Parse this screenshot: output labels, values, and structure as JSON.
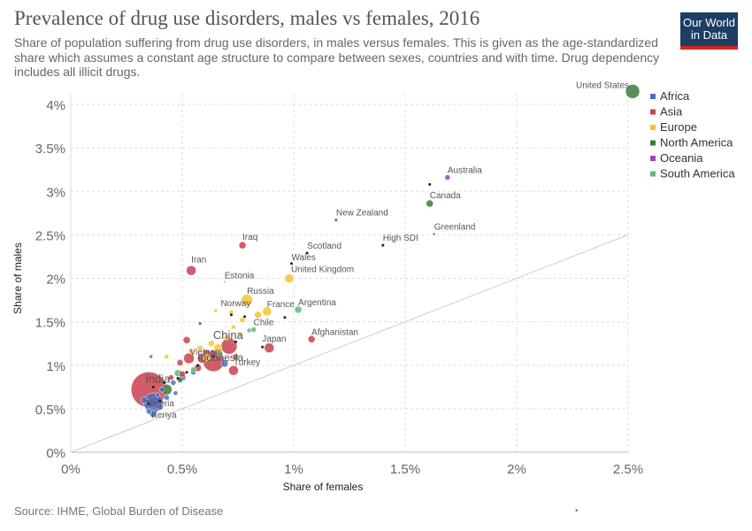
{
  "header": {
    "title": "Prevalence of drug use disorders, males vs females, 2016",
    "subtitle": "Share of population suffering from drug use disorders, in males versus females. This is given as the age-standardized share which assumes a constant age structure to compare between sexes, countries and with time. Drug dependency includes all illicit drugs.",
    "logo_line1": "Our World",
    "logo_line2": "in Data"
  },
  "footer": {
    "source": "Source: IHME, Global Burden of Disease",
    "marker": "•"
  },
  "colors": {
    "Africa": "#4c6fbf",
    "Asia": "#c9414e",
    "Europe": "#f4c430",
    "North America": "#3a7d3b",
    "Oceania": "#a83fbf",
    "South America": "#5cbd74",
    "aggregate": "#222222",
    "grid": "#dddddd",
    "diagonal": "#cccccc"
  },
  "chart_data": {
    "type": "scatter",
    "xlabel": "Share of females",
    "ylabel": "Share of males",
    "xlim": [
      0,
      2.5
    ],
    "ylim": [
      0,
      4
    ],
    "xticks": [
      0,
      0.5,
      1,
      1.5,
      2,
      2.5
    ],
    "xtick_labels": [
      "0%",
      "0.5%",
      "1%",
      "1.5%",
      "2%",
      "2.5%"
    ],
    "yticks": [
      0,
      0.5,
      1,
      1.5,
      2,
      2.5,
      3,
      3.5,
      4
    ],
    "ytick_labels": [
      "0%",
      "0.5%",
      "1%",
      "1.5%",
      "2%",
      "2.5%",
      "3%",
      "3.5%",
      "4%"
    ],
    "grid": true,
    "reference_line": "y = x",
    "legend_position": "right",
    "legend": [
      "Africa",
      "Asia",
      "Europe",
      "North America",
      "Oceania",
      "South America"
    ],
    "labeled_points": [
      {
        "label": "United States",
        "region": "North America",
        "x": 2.52,
        "y": 4.15,
        "size": 8
      },
      {
        "label": "Australia",
        "region": "Oceania",
        "x": 1.69,
        "y": 3.16,
        "size": 3
      },
      {
        "label": "Canada",
        "region": "North America",
        "x": 1.61,
        "y": 2.86,
        "size": 4
      },
      {
        "label": "Greenland",
        "region": "North America",
        "x": 1.63,
        "y": 2.51,
        "size": 1.5
      },
      {
        "label": "New Zealand",
        "region": "Oceania",
        "x": 1.19,
        "y": 2.67,
        "size": 2
      },
      {
        "label": "High SDI",
        "region": "aggregate",
        "x": 1.4,
        "y": 2.38,
        "size": 1.5
      },
      {
        "label": "Iraq",
        "region": "Asia",
        "x": 0.77,
        "y": 2.38,
        "size": 4
      },
      {
        "label": "Scotland",
        "region": "aggregate",
        "x": 1.06,
        "y": 2.29,
        "size": 1.5
      },
      {
        "label": "Wales",
        "region": "aggregate",
        "x": 0.99,
        "y": 2.17,
        "size": 1.5
      },
      {
        "label": "Iran",
        "region": "Asia",
        "x": 0.54,
        "y": 2.09,
        "size": 5.5
      },
      {
        "label": "United Kingdom",
        "region": "Europe",
        "x": 0.98,
        "y": 2.0,
        "size": 5
      },
      {
        "label": "Estonia",
        "region": "Europe",
        "x": 0.69,
        "y": 1.96,
        "size": 1.5
      },
      {
        "label": "Russia",
        "region": "Europe",
        "x": 0.79,
        "y": 1.75,
        "size": 6.5
      },
      {
        "label": "Argentina",
        "region": "South America",
        "x": 1.02,
        "y": 1.64,
        "size": 4
      },
      {
        "label": "Norway",
        "region": "Europe",
        "x": 0.72,
        "y": 1.61,
        "size": 2.5
      },
      {
        "label": "France",
        "region": "Europe",
        "x": 0.88,
        "y": 1.62,
        "size": 5
      },
      {
        "label": "Chile",
        "region": "South America",
        "x": 0.82,
        "y": 1.41,
        "size": 3
      },
      {
        "label": "Afghanistan",
        "region": "Asia",
        "x": 1.08,
        "y": 1.3,
        "size": 4
      },
      {
        "label": "China",
        "region": "Asia",
        "x": 0.71,
        "y": 1.22,
        "size": 9
      },
      {
        "label": "Japan",
        "region": "Asia",
        "x": 0.89,
        "y": 1.2,
        "size": 5.5
      },
      {
        "label": "Vietnam",
        "region": "Asia",
        "x": 0.59,
        "y": 1.08,
        "size": 5.5
      },
      {
        "label": "Indonesia",
        "region": "Asia",
        "x": 0.64,
        "y": 1.05,
        "size": 12
      },
      {
        "label": "Turkey",
        "region": "Asia",
        "x": 0.73,
        "y": 0.94,
        "size": 5.5
      },
      {
        "label": "India",
        "region": "Asia",
        "x": 0.35,
        "y": 0.72,
        "size": 20
      },
      {
        "label": "Nigeria",
        "region": "Africa",
        "x": 0.37,
        "y": 0.57,
        "size": 11
      },
      {
        "label": "Kenya",
        "region": "Africa",
        "x": 0.37,
        "y": 0.44,
        "size": 4
      }
    ],
    "other_points": [
      {
        "region": "Africa",
        "x": 0.35,
        "y": 0.47,
        "size": 3
      },
      {
        "region": "Africa",
        "x": 0.4,
        "y": 0.52,
        "size": 3.5
      },
      {
        "region": "Africa",
        "x": 0.33,
        "y": 0.6,
        "size": 4
      },
      {
        "region": "Africa",
        "x": 0.43,
        "y": 0.63,
        "size": 3
      },
      {
        "region": "Africa",
        "x": 0.47,
        "y": 0.68,
        "size": 2.5
      },
      {
        "region": "Africa",
        "x": 0.41,
        "y": 0.72,
        "size": 3
      },
      {
        "region": "Africa",
        "x": 0.46,
        "y": 0.8,
        "size": 3
      },
      {
        "region": "Africa",
        "x": 0.5,
        "y": 0.86,
        "size": 4
      },
      {
        "region": "Africa",
        "x": 0.55,
        "y": 0.92,
        "size": 3
      },
      {
        "region": "Africa",
        "x": 0.36,
        "y": 1.1,
        "size": 2
      },
      {
        "region": "Africa",
        "x": 0.69,
        "y": 1.02,
        "size": 4
      },
      {
        "region": "Africa",
        "x": 0.39,
        "y": 0.66,
        "size": 2.5
      },
      {
        "region": "Asia",
        "x": 0.52,
        "y": 1.29,
        "size": 4
      },
      {
        "region": "Asia",
        "x": 0.53,
        "y": 1.08,
        "size": 6
      },
      {
        "region": "Asia",
        "x": 0.57,
        "y": 0.97,
        "size": 4
      },
      {
        "region": "Asia",
        "x": 0.5,
        "y": 0.9,
        "size": 3.5
      },
      {
        "region": "Asia",
        "x": 0.61,
        "y": 1.14,
        "size": 4
      },
      {
        "region": "Asia",
        "x": 0.45,
        "y": 0.86,
        "size": 3
      },
      {
        "region": "Asia",
        "x": 0.74,
        "y": 1.1,
        "size": 3
      },
      {
        "region": "Asia",
        "x": 0.49,
        "y": 1.03,
        "size": 3.5
      },
      {
        "region": "Europe",
        "x": 0.66,
        "y": 1.2,
        "size": 4.5
      },
      {
        "region": "Europe",
        "x": 0.63,
        "y": 1.25,
        "size": 3.5
      },
      {
        "region": "Europe",
        "x": 0.76,
        "y": 1.35,
        "size": 2.5
      },
      {
        "region": "Europe",
        "x": 0.61,
        "y": 1.09,
        "size": 4
      },
      {
        "region": "Europe",
        "x": 0.54,
        "y": 1.16,
        "size": 3
      },
      {
        "region": "Europe",
        "x": 0.73,
        "y": 1.44,
        "size": 2.5
      },
      {
        "region": "Europe",
        "x": 0.65,
        "y": 1.63,
        "size": 2
      },
      {
        "region": "Europe",
        "x": 0.84,
        "y": 1.58,
        "size": 4
      },
      {
        "region": "Europe",
        "x": 0.77,
        "y": 1.52,
        "size": 3
      },
      {
        "region": "Europe",
        "x": 0.43,
        "y": 1.1,
        "size": 2.5
      },
      {
        "region": "Europe",
        "x": 0.58,
        "y": 1.2,
        "size": 3
      },
      {
        "region": "Europe",
        "x": 0.7,
        "y": 1.32,
        "size": 3
      },
      {
        "region": "North America",
        "x": 0.43,
        "y": 0.72,
        "size": 6
      },
      {
        "region": "North America",
        "x": 0.58,
        "y": 1.48,
        "size": 2
      },
      {
        "region": "North America",
        "x": 0.49,
        "y": 0.83,
        "size": 3
      },
      {
        "region": "South America",
        "x": 0.48,
        "y": 0.91,
        "size": 4
      },
      {
        "region": "South America",
        "x": 0.55,
        "y": 0.95,
        "size": 3
      },
      {
        "region": "South America",
        "x": 0.8,
        "y": 1.4,
        "size": 2.5
      },
      {
        "region": "South America",
        "x": 0.67,
        "y": 1.13,
        "size": 3
      },
      {
        "region": "aggregate",
        "x": 1.61,
        "y": 3.08,
        "size": 1.5
      },
      {
        "region": "aggregate",
        "x": 0.96,
        "y": 1.55,
        "size": 1.5
      },
      {
        "region": "aggregate",
        "x": 0.72,
        "y": 1.58,
        "size": 1.5
      },
      {
        "region": "aggregate",
        "x": 0.78,
        "y": 1.56,
        "size": 1.5
      },
      {
        "region": "aggregate",
        "x": 0.86,
        "y": 1.21,
        "size": 1.5
      },
      {
        "region": "aggregate",
        "x": 0.74,
        "y": 1.27,
        "size": 1.5
      },
      {
        "region": "aggregate",
        "x": 0.64,
        "y": 1.1,
        "size": 1.5
      },
      {
        "region": "aggregate",
        "x": 0.57,
        "y": 1.0,
        "size": 1.5
      },
      {
        "region": "aggregate",
        "x": 0.52,
        "y": 0.92,
        "size": 1.5
      },
      {
        "region": "aggregate",
        "x": 0.48,
        "y": 0.85,
        "size": 1.5
      },
      {
        "region": "aggregate",
        "x": 0.42,
        "y": 0.8,
        "size": 1.5
      },
      {
        "region": "aggregate",
        "x": 0.37,
        "y": 0.75,
        "size": 1.5
      },
      {
        "region": "aggregate",
        "x": 0.35,
        "y": 0.56,
        "size": 1.5
      },
      {
        "region": "aggregate",
        "x": 0.4,
        "y": 0.59,
        "size": 1.5
      }
    ]
  }
}
